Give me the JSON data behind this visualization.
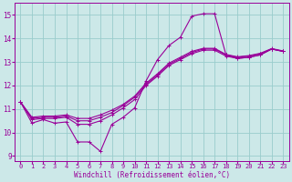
{
  "xlabel": "Windchill (Refroidissement éolien,°C)",
  "bg_color": "#cce8e8",
  "grid_color": "#99cccc",
  "line_color": "#990099",
  "x_values": [
    0,
    1,
    2,
    3,
    4,
    5,
    6,
    7,
    8,
    9,
    10,
    11,
    12,
    13,
    14,
    15,
    16,
    17,
    18,
    19,
    20,
    21,
    22,
    23
  ],
  "series_main": [
    11.3,
    10.4,
    10.55,
    10.4,
    10.45,
    9.6,
    9.6,
    9.2,
    10.35,
    10.65,
    11.05,
    12.2,
    13.1,
    13.7,
    14.05,
    14.95,
    15.05,
    15.05,
    13.3,
    13.15,
    13.2,
    13.3,
    13.55,
    13.45
  ],
  "series_line1": [
    11.3,
    10.55,
    10.6,
    10.6,
    10.65,
    10.35,
    10.35,
    10.5,
    10.75,
    11.05,
    11.4,
    12.0,
    12.4,
    12.85,
    13.1,
    13.35,
    13.5,
    13.5,
    13.25,
    13.15,
    13.2,
    13.3,
    13.55,
    13.45
  ],
  "series_line2": [
    11.3,
    10.6,
    10.65,
    10.65,
    10.7,
    10.5,
    10.5,
    10.65,
    10.85,
    11.15,
    11.5,
    12.05,
    12.45,
    12.9,
    13.15,
    13.4,
    13.55,
    13.55,
    13.3,
    13.2,
    13.25,
    13.35,
    13.55,
    13.45
  ],
  "series_line3": [
    11.3,
    10.65,
    10.7,
    10.7,
    10.75,
    10.6,
    10.6,
    10.75,
    10.95,
    11.2,
    11.55,
    12.1,
    12.5,
    12.95,
    13.2,
    13.45,
    13.58,
    13.58,
    13.32,
    13.22,
    13.27,
    13.37,
    13.57,
    13.47
  ],
  "ylim": [
    8.8,
    15.5
  ],
  "xlim": [
    -0.5,
    23.5
  ],
  "yticks": [
    9,
    10,
    11,
    12,
    13,
    14,
    15
  ],
  "xticks": [
    0,
    1,
    2,
    3,
    4,
    5,
    6,
    7,
    8,
    9,
    10,
    11,
    12,
    13,
    14,
    15,
    16,
    17,
    18,
    19,
    20,
    21,
    22,
    23
  ],
  "lw": 0.8,
  "marker_size": 2.5,
  "tick_fontsize": 5.0,
  "xlabel_fontsize": 5.5
}
